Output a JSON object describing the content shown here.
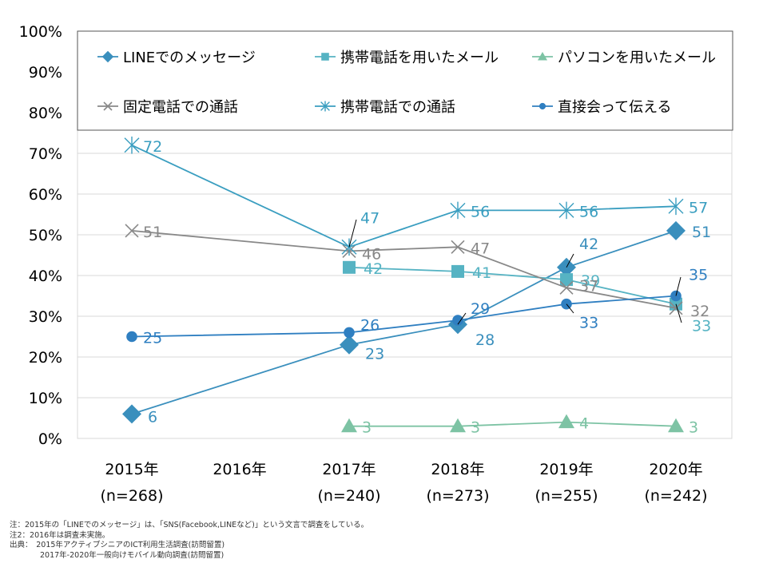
{
  "chart_data": {
    "type": "line",
    "categories": [
      "2015年",
      "2016年",
      "2017年",
      "2018年",
      "2019年",
      "2020年"
    ],
    "sample_sizes": [
      "(n=268)",
      "",
      "(n=240)",
      "(n=273)",
      "(n=255)",
      "(n=242)"
    ],
    "y_ticks": [
      "0%",
      "10%",
      "20%",
      "30%",
      "40%",
      "50%",
      "60%",
      "70%",
      "80%",
      "90%",
      "100%"
    ],
    "ylim": [
      0,
      100
    ],
    "grid": true,
    "legend_position": "top",
    "series": [
      {
        "name": "LINEでのメッセージ",
        "marker": "diamond",
        "color": "#3a8fbd",
        "values": [
          6,
          null,
          23,
          28,
          42,
          51
        ]
      },
      {
        "name": "携帯電話を用いたメール",
        "marker": "square",
        "color": "#56b3c3",
        "values": [
          null,
          null,
          42,
          41,
          39,
          33
        ]
      },
      {
        "name": "パソコンを用いたメール",
        "marker": "triangle",
        "color": "#7dc3a4",
        "values": [
          null,
          null,
          3,
          3,
          4,
          3
        ]
      },
      {
        "name": "固定電話での通話",
        "marker": "x",
        "color": "#888888",
        "values": [
          51,
          null,
          46,
          47,
          37,
          32
        ]
      },
      {
        "name": "携帯電話での通話",
        "marker": "asterisk",
        "color": "#3a9ec0",
        "values": [
          72,
          null,
          47,
          56,
          56,
          57
        ]
      },
      {
        "name": "直接会って伝える",
        "marker": "circle",
        "color": "#2f7fc1",
        "values": [
          25,
          null,
          26,
          29,
          33,
          35
        ]
      }
    ]
  },
  "notes": [
    "注：2015年の「LINEでのメッセージ」は、「SNS(Facebook,LINEなど)」という文言で調査をしている。",
    "注2：2016年は調査未実施。",
    "出典：　2015年アクティブシニアのICT利用生活調査(訪問留置)",
    "　　　　2017年-2020年一般向けモバイル動向調査(訪問留置)"
  ]
}
